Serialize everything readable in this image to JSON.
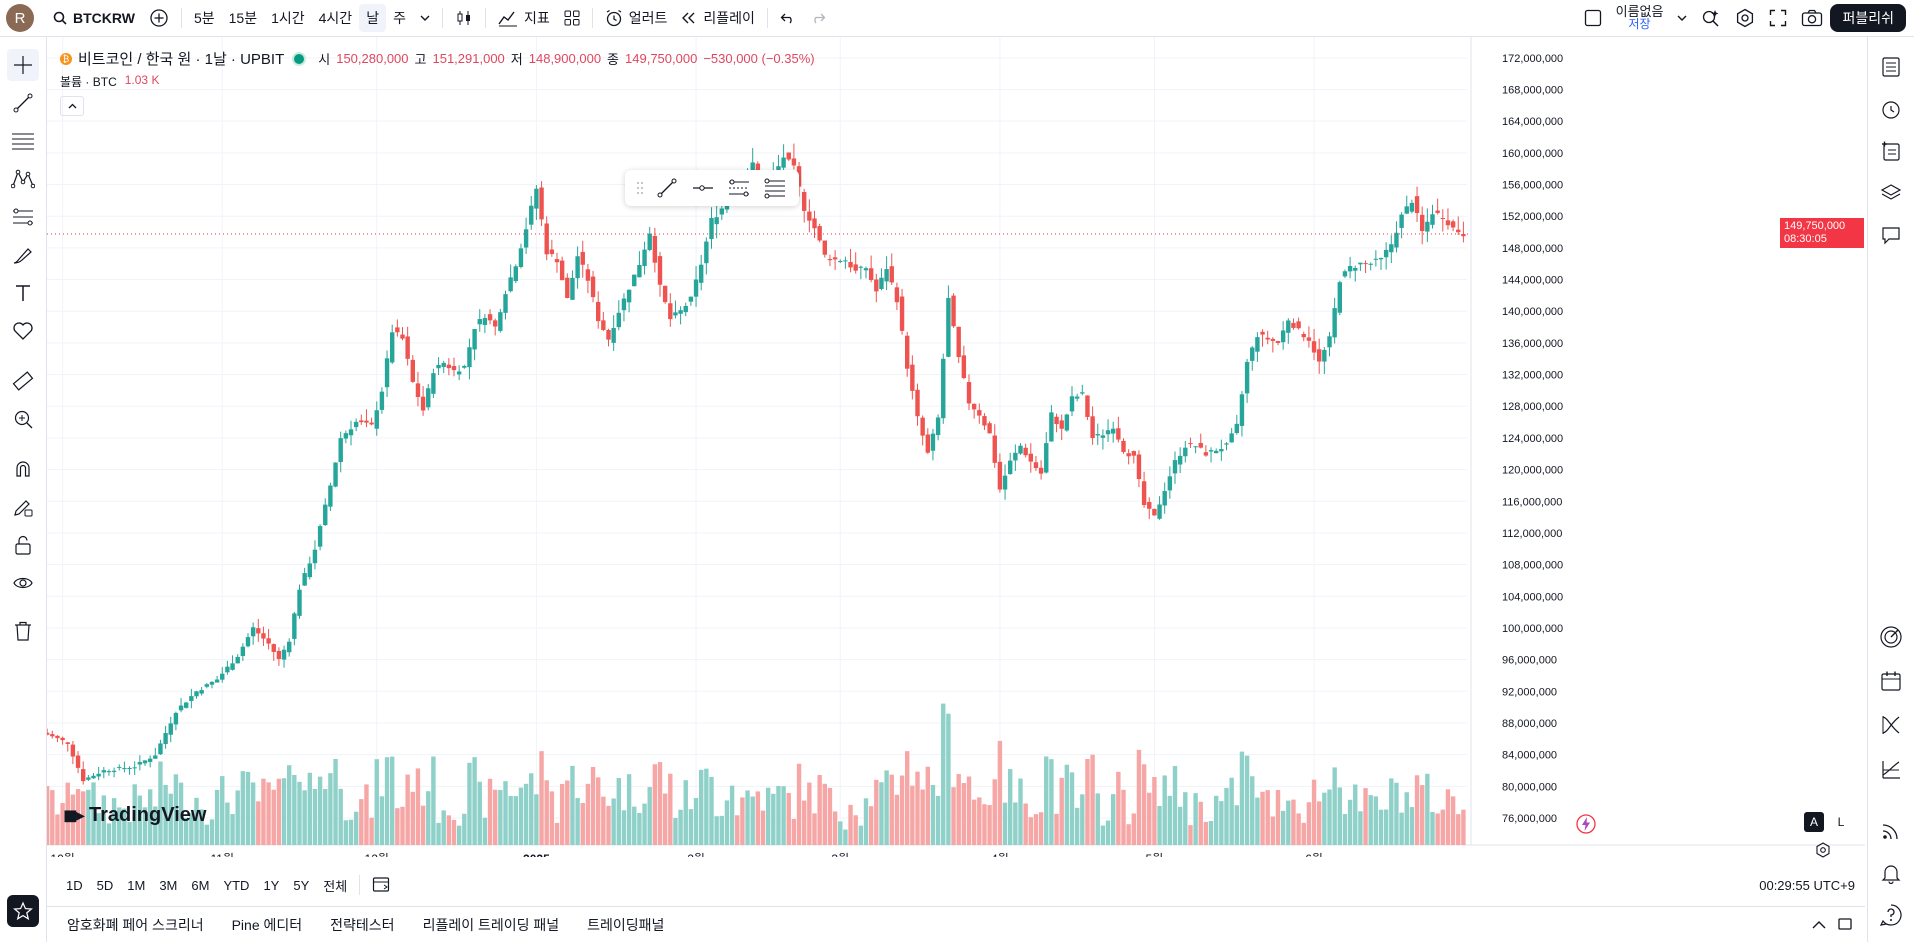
{
  "topbar": {
    "avatar_letter": "R",
    "symbol": "BTCKRW",
    "intervals": [
      "5분",
      "15분",
      "1시간",
      "4시간",
      "날",
      "주"
    ],
    "active_interval": "날",
    "indicators_label": "지표",
    "alert_label": "얼러트",
    "replay_label": "리플레이",
    "layout_name": "이름없음",
    "layout_sub": "저장",
    "publish_label": "퍼블리쉬"
  },
  "legend": {
    "title": "비트코인 / 한국 원 · 1날 · UPBIT",
    "open_label": "시",
    "open": "150,280,000",
    "high_label": "고",
    "high": "151,291,000",
    "low_label": "저",
    "low": "148,900,000",
    "close_label": "종",
    "close": "149,750,000",
    "change": "−530,000 (−0.35%)",
    "volume_label": "볼륨 · BTC",
    "volume_value": "1.03 K"
  },
  "price_tag": {
    "price": "149,750,000",
    "countdown": "08:30:05"
  },
  "watermark": "TradingView",
  "range_buttons": [
    "1D",
    "5D",
    "1M",
    "3M",
    "6M",
    "YTD",
    "1Y",
    "5Y",
    "전체"
  ],
  "clock": "00:29:55 UTC+9",
  "bottom_panels": [
    "암호화폐 페어 스크리너",
    "Pine 에디터",
    "전략테스터",
    "리플레이 트레이딩 패널",
    "트레이딩패널"
  ],
  "scale_buttons": [
    "A",
    "L"
  ],
  "colors": {
    "up": "#26a69a",
    "down": "#ef5350",
    "up_vol": "#8fd1c9",
    "down_vol": "#f5a6a5",
    "accent": "#2962ff"
  },
  "chart_data": {
    "type": "candlestick",
    "symbol": "BTCKRW",
    "ylim": [
      76000000,
      174000000
    ],
    "yticks": [
      172000000,
      168000000,
      164000000,
      160000000,
      156000000,
      152000000,
      148000000,
      144000000,
      140000000,
      136000000,
      132000000,
      128000000,
      124000000,
      120000000,
      116000000,
      112000000,
      108000000,
      104000000,
      100000000,
      96000000,
      92000000,
      88000000,
      84000000,
      80000000,
      76000000
    ],
    "ytick_labels": [
      "172,000,000",
      "168,000,000",
      "164,000,000",
      "160,000,000",
      "156,000,000",
      "152,000,000",
      "148,000,000",
      "144,000,000",
      "140,000,000",
      "136,000,000",
      "132,000,000",
      "128,000,000",
      "124,000,000",
      "120,000,000",
      "116,000,000",
      "112,000,000",
      "108,000,000",
      "104,000,000",
      "100,000,000",
      "96,000,000",
      "92,000,000",
      "88,000,000",
      "84,000,000",
      "80,000,000",
      "76,000,000"
    ],
    "xtick_labels": [
      "10월",
      "11월",
      "12월",
      "2025",
      "2월",
      "3월",
      "4월",
      "5월",
      "6월"
    ],
    "xtick_day_index": [
      4,
      35,
      65,
      96,
      127,
      155,
      186,
      216,
      247
    ],
    "last_price": 149750000,
    "close_path": [
      [
        0,
        86800000
      ],
      [
        5,
        85500000
      ],
      [
        8,
        80800000
      ],
      [
        12,
        82000000
      ],
      [
        18,
        82500000
      ],
      [
        22,
        84000000
      ],
      [
        26,
        89500000
      ],
      [
        30,
        92000000
      ],
      [
        34,
        93500000
      ],
      [
        38,
        96500000
      ],
      [
        41,
        100000000
      ],
      [
        44,
        98000000
      ],
      [
        46,
        96000000
      ],
      [
        48,
        98500000
      ],
      [
        50,
        105000000
      ],
      [
        53,
        110000000
      ],
      [
        56,
        118000000
      ],
      [
        58,
        124000000
      ],
      [
        61,
        126000000
      ],
      [
        64,
        125500000
      ],
      [
        66,
        130000000
      ],
      [
        68,
        137500000
      ],
      [
        70,
        136500000
      ],
      [
        72,
        131000000
      ],
      [
        74,
        127500000
      ],
      [
        76,
        132500000
      ],
      [
        78,
        133500000
      ],
      [
        80,
        132500000
      ],
      [
        82,
        133000000
      ],
      [
        84,
        138000000
      ],
      [
        86,
        139500000
      ],
      [
        88,
        138000000
      ],
      [
        90,
        142500000
      ],
      [
        92,
        146000000
      ],
      [
        94,
        150500000
      ],
      [
        96,
        155500000
      ],
      [
        98,
        147500000
      ],
      [
        100,
        146500000
      ],
      [
        102,
        141500000
      ],
      [
        104,
        147000000
      ],
      [
        106,
        144000000
      ],
      [
        108,
        139000000
      ],
      [
        110,
        136500000
      ],
      [
        112,
        140000000
      ],
      [
        114,
        143000000
      ],
      [
        116,
        146000000
      ],
      [
        118,
        150000000
      ],
      [
        120,
        143000000
      ],
      [
        122,
        139000000
      ],
      [
        124,
        140000000
      ],
      [
        126,
        141500000
      ],
      [
        128,
        146000000
      ],
      [
        130,
        151500000
      ],
      [
        132,
        153000000
      ],
      [
        134,
        157500000
      ],
      [
        136,
        156000000
      ],
      [
        138,
        158500000
      ],
      [
        140,
        155500000
      ],
      [
        142,
        157000000
      ],
      [
        144,
        159500000
      ],
      [
        146,
        158000000
      ],
      [
        148,
        153000000
      ],
      [
        150,
        150500000
      ],
      [
        152,
        147000000
      ],
      [
        154,
        146500000
      ],
      [
        156,
        146500000
      ],
      [
        158,
        145000000
      ],
      [
        160,
        145500000
      ],
      [
        162,
        142500000
      ],
      [
        164,
        145500000
      ],
      [
        166,
        141500000
      ],
      [
        168,
        133000000
      ],
      [
        170,
        126500000
      ],
      [
        172,
        122000000
      ],
      [
        174,
        126500000
      ],
      [
        176,
        141500000
      ],
      [
        178,
        134000000
      ],
      [
        180,
        128500000
      ],
      [
        182,
        127000000
      ],
      [
        184,
        124500000
      ],
      [
        186,
        117500000
      ],
      [
        188,
        121000000
      ],
      [
        190,
        123000000
      ],
      [
        192,
        121000000
      ],
      [
        194,
        119500000
      ],
      [
        196,
        127000000
      ],
      [
        198,
        125000000
      ],
      [
        200,
        129000000
      ],
      [
        202,
        129500000
      ],
      [
        204,
        124000000
      ],
      [
        206,
        124500000
      ],
      [
        208,
        125500000
      ],
      [
        210,
        122500000
      ],
      [
        212,
        121500000
      ],
      [
        214,
        115500000
      ],
      [
        216,
        114000000
      ],
      [
        218,
        117500000
      ],
      [
        220,
        121000000
      ],
      [
        222,
        123000000
      ],
      [
        224,
        123000000
      ],
      [
        226,
        122000000
      ],
      [
        228,
        122500000
      ],
      [
        230,
        123000000
      ],
      [
        232,
        125500000
      ],
      [
        234,
        133500000
      ],
      [
        236,
        137000000
      ],
      [
        238,
        136500000
      ],
      [
        240,
        136000000
      ],
      [
        242,
        139000000
      ],
      [
        244,
        137500000
      ],
      [
        246,
        136500000
      ],
      [
        248,
        133500000
      ],
      [
        250,
        136500000
      ],
      [
        252,
        144000000
      ],
      [
        254,
        145500000
      ],
      [
        256,
        146000000
      ],
      [
        258,
        146000000
      ],
      [
        260,
        146500000
      ],
      [
        262,
        148500000
      ],
      [
        264,
        152000000
      ],
      [
        266,
        154000000
      ],
      [
        268,
        150000000
      ],
      [
        270,
        152500000
      ],
      [
        272,
        152000000
      ],
      [
        274,
        150500000
      ],
      [
        276,
        149750000
      ]
    ]
  }
}
